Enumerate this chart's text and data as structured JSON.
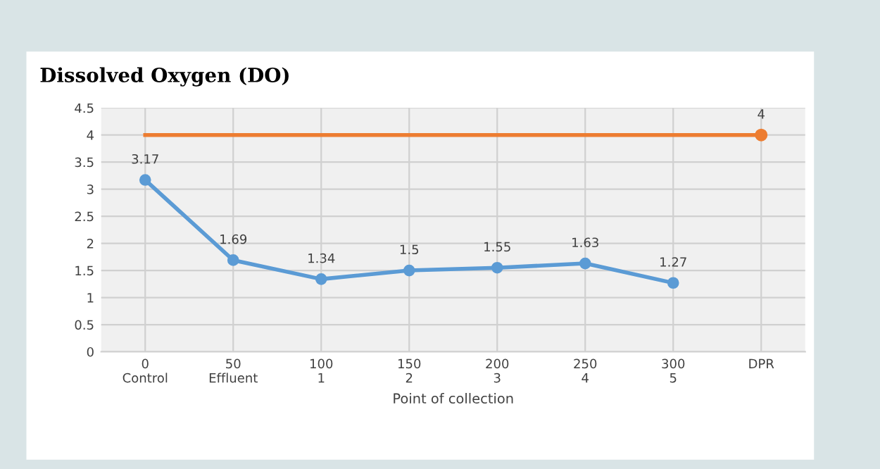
{
  "chart_data": {
    "type": "line",
    "title": "Dissolved Oxygen (DO)",
    "xlabel": "Point of collection",
    "categories": [
      "0\nControl",
      "50\nEffluent",
      "100\n1",
      "150\n2",
      "200\n3",
      "250\n4",
      "300\n5",
      "DPR"
    ],
    "series": [
      {
        "color": "#5b9bd5",
        "marker": "circle",
        "values": [
          3.17,
          1.69,
          1.34,
          1.5,
          1.55,
          1.63,
          1.27,
          null
        ],
        "value_labels": [
          "3.17",
          "1.69",
          "1.34",
          "1.5",
          "1.55",
          "1.63",
          "1.27",
          null
        ]
      },
      {
        "color": "#ed7d31",
        "marker": "none",
        "values": [
          4,
          4,
          4,
          4,
          4,
          4,
          4,
          4
        ]
      },
      {
        "type": "scatter",
        "color": "#ed7d31",
        "marker": "circle",
        "values": [
          null,
          null,
          null,
          null,
          null,
          null,
          null,
          4
        ],
        "value_labels": [
          null,
          null,
          null,
          null,
          null,
          null,
          null,
          "4"
        ]
      }
    ],
    "ylim": [
      0,
      4.5
    ],
    "yticks": [
      0,
      0.5,
      1,
      1.5,
      2,
      2.5,
      3,
      3.5,
      4,
      4.5
    ],
    "grid": true,
    "line_style": "solid"
  }
}
